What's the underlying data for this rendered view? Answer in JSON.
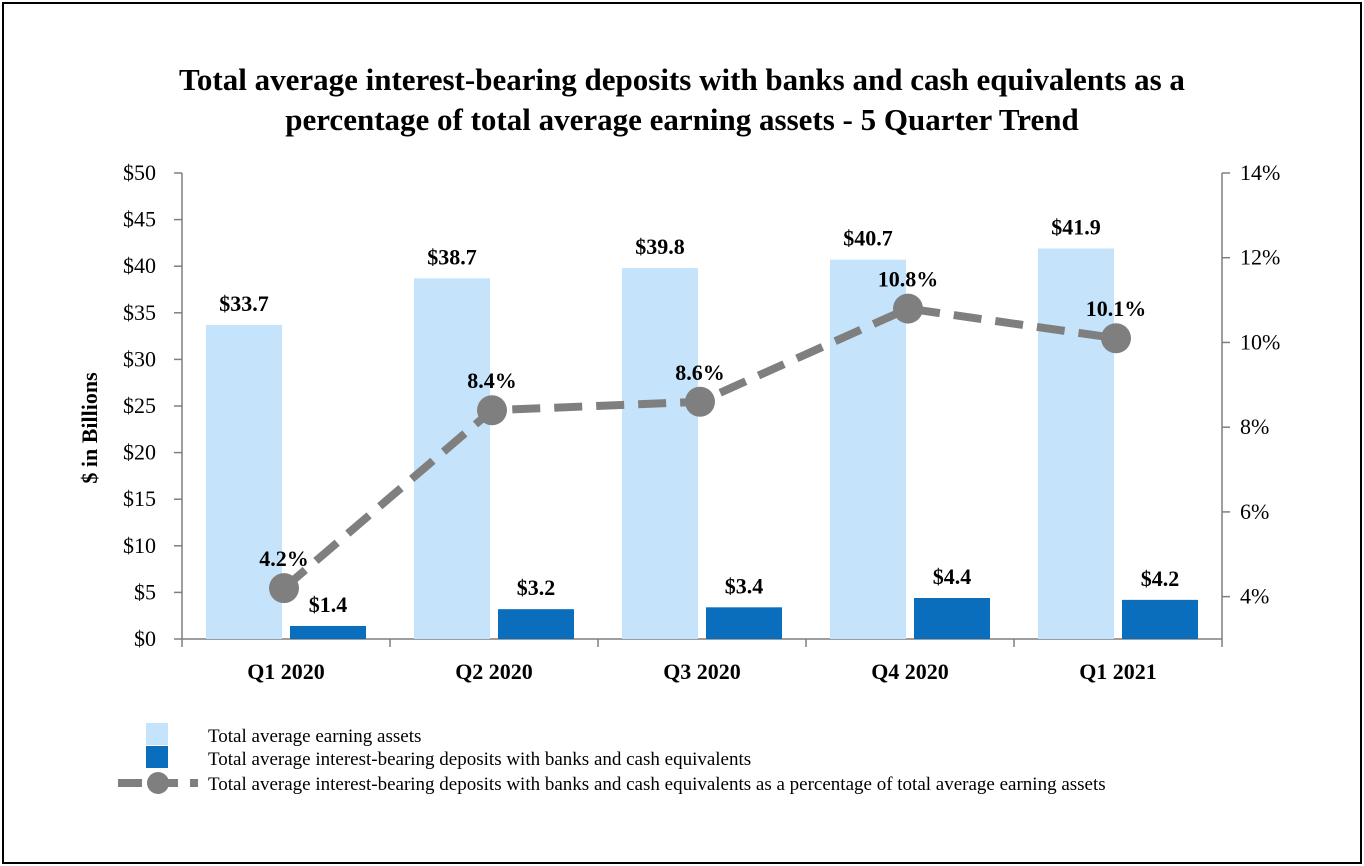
{
  "chart_data": {
    "type": "bar",
    "title_lines": [
      "Total average interest-bearing deposits with banks and cash equivalents as a",
      "percentage of total average earning assets - 5 Quarter Trend"
    ],
    "categories": [
      "Q1 2020",
      "Q2 2020",
      "Q3 2020",
      "Q4 2020",
      "Q1 2021"
    ],
    "ylabel": "$ in Billions",
    "ylim": [
      0,
      50
    ],
    "y_ticks": [
      0,
      5,
      10,
      15,
      20,
      25,
      30,
      35,
      40,
      45,
      50
    ],
    "y_tick_labels": [
      "$0",
      "$5",
      "$10",
      "$15",
      "$20",
      "$25",
      "$30",
      "$35",
      "$40",
      "$45",
      "$50"
    ],
    "y2lim": [
      3,
      14
    ],
    "y2_ticks": [
      4,
      6,
      8,
      10,
      12,
      14
    ],
    "y2_tick_labels": [
      "4%",
      "6%",
      "8%",
      "10%",
      "12%",
      "14%"
    ],
    "series": [
      {
        "name": "Total average earning assets",
        "kind": "bar",
        "axis": "left",
        "color": "#c5e4fb",
        "values": [
          33.7,
          38.7,
          39.8,
          40.7,
          41.9
        ],
        "labels": [
          "$33.7",
          "$38.7",
          "$39.8",
          "$40.7",
          "$41.9"
        ]
      },
      {
        "name": "Total average interest-bearing deposits with banks and cash equivalents",
        "kind": "bar",
        "axis": "left",
        "color": "#0a6ebd",
        "values": [
          1.4,
          3.2,
          3.4,
          4.4,
          4.2
        ],
        "labels": [
          "$1.4",
          "$3.2",
          "$3.4",
          "$4.4",
          "$4.2"
        ]
      },
      {
        "name": "Total average interest-bearing deposits with banks and cash equivalents as a percentage of total average earning assets",
        "kind": "line",
        "axis": "right",
        "color": "#7f7f7f",
        "style": "dashed",
        "values": [
          4.2,
          8.4,
          8.6,
          10.8,
          10.1
        ],
        "labels": [
          "4.2%",
          "8.4%",
          "8.6%",
          "10.8%",
          "10.1%"
        ]
      }
    ],
    "grid": false,
    "legend_position": "bottom-left"
  }
}
